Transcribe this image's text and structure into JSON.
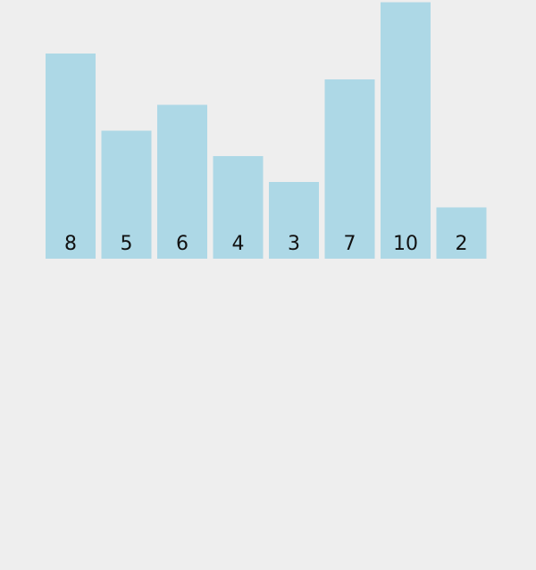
{
  "chart_data": {
    "type": "bar",
    "categories": [
      "8",
      "5",
      "6",
      "4",
      "3",
      "7",
      "10",
      "2"
    ],
    "values": [
      8,
      5,
      6,
      4,
      3,
      7,
      10,
      2
    ],
    "data_labels": [
      "8",
      "5",
      "6",
      "4",
      "3",
      "7",
      "10",
      "2"
    ],
    "title": "",
    "xlabel": "",
    "ylabel": "",
    "ylim": [
      0,
      10
    ],
    "grid": false,
    "legend": "none",
    "colors": {
      "background": "#eeeeee",
      "bar": "#add8e6",
      "label": "#111111"
    }
  }
}
